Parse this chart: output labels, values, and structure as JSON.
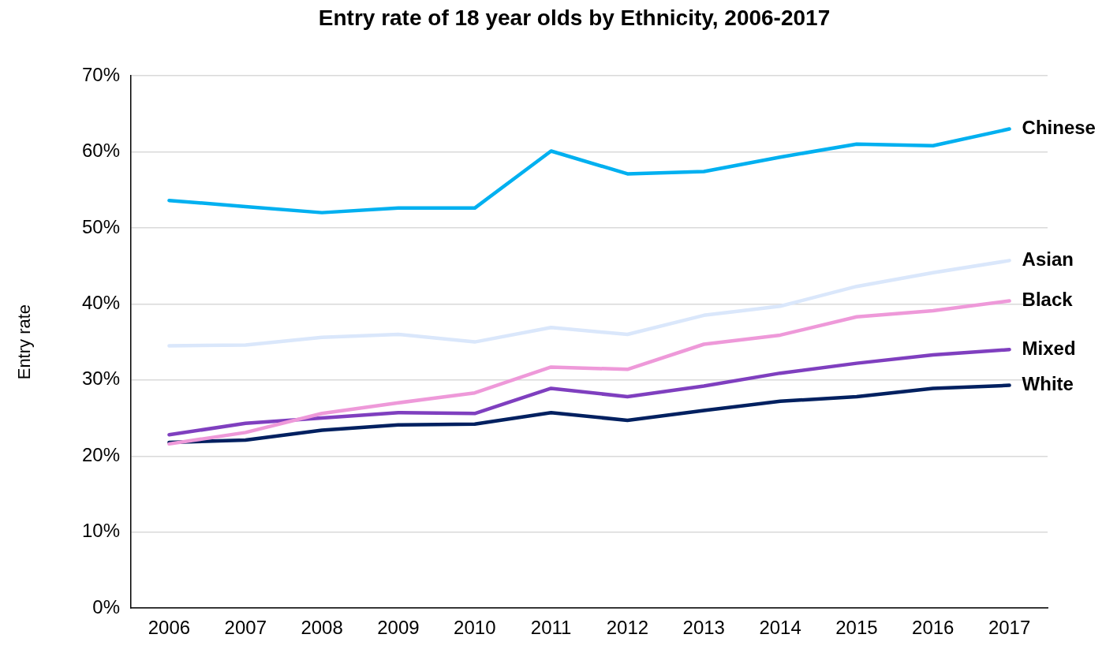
{
  "chart_data": {
    "type": "line",
    "title": "Entry rate of 18 year olds by Ethnicity, 2006-2017",
    "ylabel": "Entry rate",
    "categories": [
      "2006",
      "2007",
      "2008",
      "2009",
      "2010",
      "2011",
      "2012",
      "2013",
      "2014",
      "2015",
      "2016",
      "2017"
    ],
    "series": [
      {
        "name": "Chinese",
        "color": "#00b0f0",
        "values": [
          53.6,
          52.8,
          52.0,
          52.6,
          52.6,
          60.1,
          57.1,
          57.4,
          59.3,
          61.0,
          60.8,
          63.0
        ]
      },
      {
        "name": "Asian",
        "color": "#dae7fb",
        "values": [
          34.5,
          34.6,
          35.6,
          36.0,
          35.0,
          36.9,
          36.0,
          38.5,
          39.7,
          42.3,
          44.1,
          45.7
        ]
      },
      {
        "name": "Black",
        "color": "#ee99d9",
        "values": [
          21.6,
          23.1,
          25.6,
          27.0,
          28.3,
          31.7,
          31.4,
          34.7,
          35.9,
          38.3,
          39.1,
          40.4
        ]
      },
      {
        "name": "Mixed",
        "color": "#7f3fbf",
        "values": [
          22.8,
          24.3,
          25.0,
          25.7,
          25.6,
          28.9,
          27.8,
          29.2,
          30.9,
          32.2,
          33.3,
          34.0
        ]
      },
      {
        "name": "White",
        "color": "#002060",
        "values": [
          21.8,
          22.1,
          23.4,
          24.1,
          24.2,
          25.7,
          24.7,
          26.0,
          27.2,
          27.8,
          28.9,
          29.3
        ]
      }
    ],
    "ylim": [
      0,
      70
    ],
    "yticks": [
      {
        "value": 0,
        "label": "0%"
      },
      {
        "value": 10,
        "label": "10%"
      },
      {
        "value": 20,
        "label": "20%"
      },
      {
        "value": 30,
        "label": "30%"
      },
      {
        "value": 40,
        "label": "40%"
      },
      {
        "value": 50,
        "label": "50%"
      },
      {
        "value": 60,
        "label": "60%"
      },
      {
        "value": 70,
        "label": "70%"
      }
    ],
    "grid": "y",
    "legend": false,
    "marker": "none",
    "line_style": "solid"
  }
}
